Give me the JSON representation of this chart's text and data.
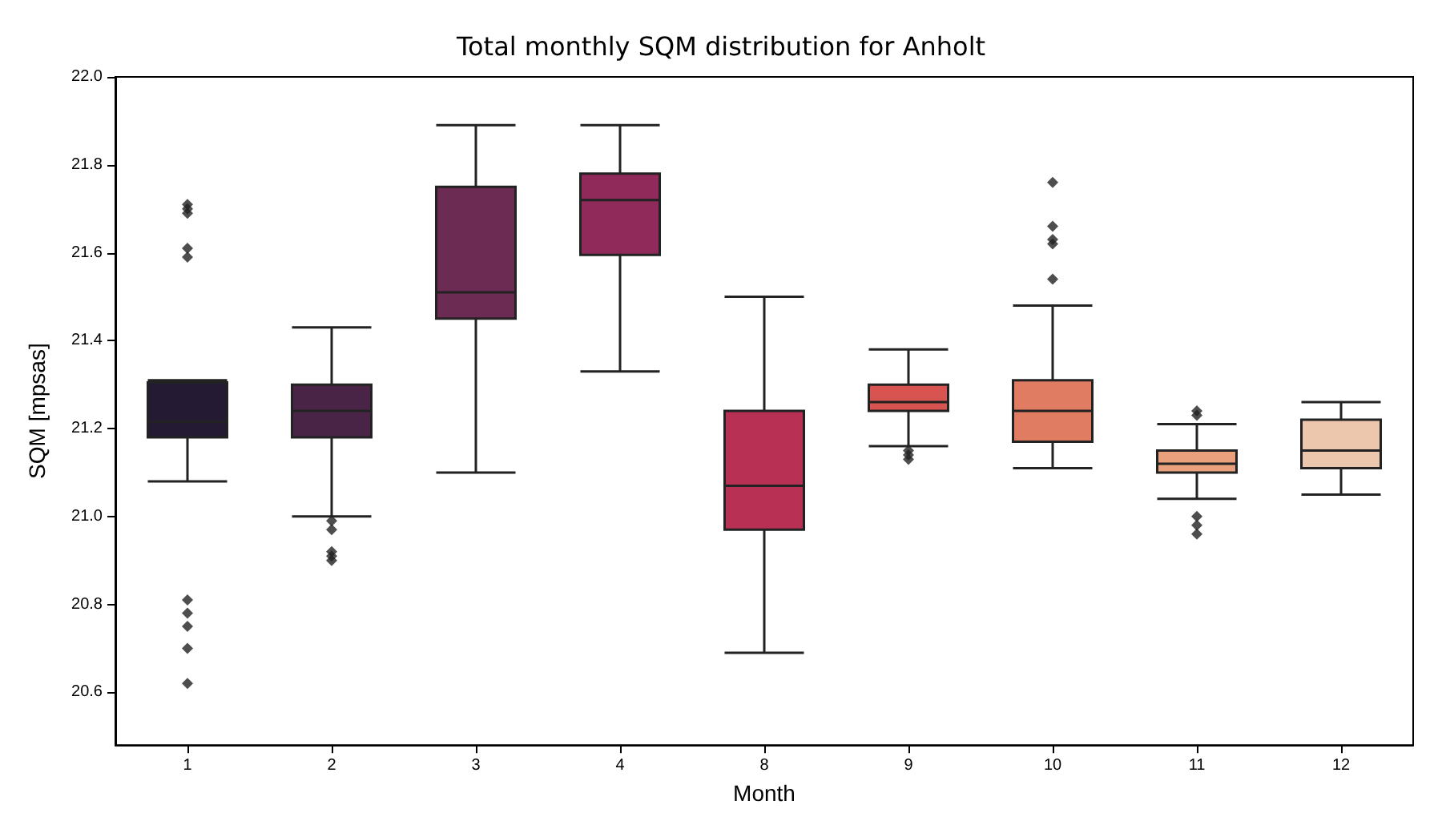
{
  "chart_data": {
    "type": "box",
    "title": "Total monthly SQM distribution for Anholt",
    "xlabel": "Month",
    "ylabel": "SQM [mpsas]",
    "categories": [
      "1",
      "2",
      "3",
      "4",
      "8",
      "9",
      "10",
      "11",
      "12"
    ],
    "colors": [
      "#251a33",
      "#4a2447",
      "#6c2b53",
      "#8f2a5a",
      "#b83155",
      "#d75451",
      "#e07c62",
      "#e9a07d",
      "#ecc7ad"
    ],
    "boxes": [
      {
        "low": 21.08,
        "q1": 21.18,
        "median": 21.215,
        "q3": 21.305,
        "high": 21.31,
        "outliers": [
          21.71,
          21.7,
          21.69,
          21.61,
          21.59,
          20.81,
          20.78,
          20.75,
          20.7,
          20.62
        ]
      },
      {
        "low": 21.0,
        "q1": 21.18,
        "median": 21.24,
        "q3": 21.3,
        "high": 21.43,
        "outliers": [
          20.99,
          20.97,
          20.92,
          20.91,
          20.9
        ]
      },
      {
        "low": 21.1,
        "q1": 21.45,
        "median": 21.51,
        "q3": 21.75,
        "high": 21.89
      },
      {
        "low": 21.33,
        "q1": 21.595,
        "median": 21.72,
        "q3": 21.78,
        "high": 21.89
      },
      {
        "low": 20.69,
        "q1": 20.97,
        "median": 21.07,
        "q3": 21.24,
        "high": 21.5
      },
      {
        "low": 21.16,
        "q1": 21.24,
        "median": 21.26,
        "q3": 21.3,
        "high": 21.38,
        "outliers": [
          21.15,
          21.14,
          21.13
        ]
      },
      {
        "low": 21.11,
        "q1": 21.17,
        "median": 21.24,
        "q3": 21.31,
        "high": 21.48,
        "outliers": [
          21.76,
          21.66,
          21.63,
          21.62,
          21.54
        ]
      },
      {
        "low": 21.04,
        "q1": 21.1,
        "median": 21.12,
        "q3": 21.15,
        "high": 21.21,
        "outliers": [
          21.24,
          21.23,
          21.0,
          20.98,
          20.96
        ]
      },
      {
        "low": 21.05,
        "q1": 21.11,
        "median": 21.15,
        "q3": 21.22,
        "high": 21.26
      }
    ],
    "ylim": [
      20.48,
      22.0
    ],
    "yticks": [
      {
        "value": 20.6,
        "label": "20.6"
      },
      {
        "value": 20.8,
        "label": "20.8"
      },
      {
        "value": 21.0,
        "label": "21.0"
      },
      {
        "value": 21.2,
        "label": "21.2"
      },
      {
        "value": 21.4,
        "label": "21.4"
      },
      {
        "value": 21.6,
        "label": "21.6"
      },
      {
        "value": 21.8,
        "label": "21.8"
      },
      {
        "value": 22.0,
        "label": "22.0"
      }
    ],
    "grid": false,
    "marker": "diamond"
  }
}
